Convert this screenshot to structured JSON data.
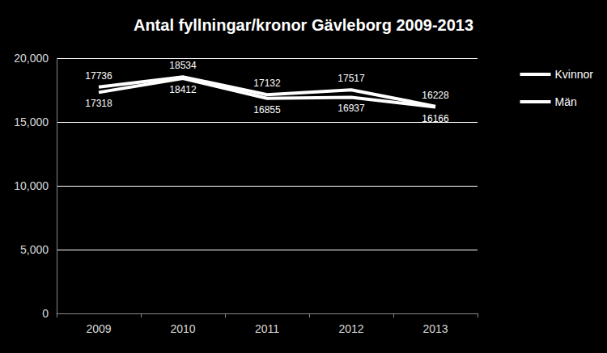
{
  "chart_data": {
    "type": "line",
    "title": "Antal fyllningar/kronor Gävleborg 2009-2013",
    "categories": [
      "2009",
      "2010",
      "2011",
      "2012",
      "2013"
    ],
    "series": [
      {
        "name": "Kvinnor",
        "color": "#ffffff",
        "values": [
          17736,
          18534,
          17132,
          17517,
          16228
        ]
      },
      {
        "name": "Män",
        "color": "#ffffff",
        "values": [
          17318,
          18412,
          16855,
          16937,
          16166
        ]
      }
    ],
    "ylim": [
      0,
      20000
    ],
    "yticks": [
      0,
      5000,
      10000,
      15000,
      20000
    ],
    "grid": true,
    "legend": "right",
    "data_labels": true,
    "marker": "none"
  }
}
